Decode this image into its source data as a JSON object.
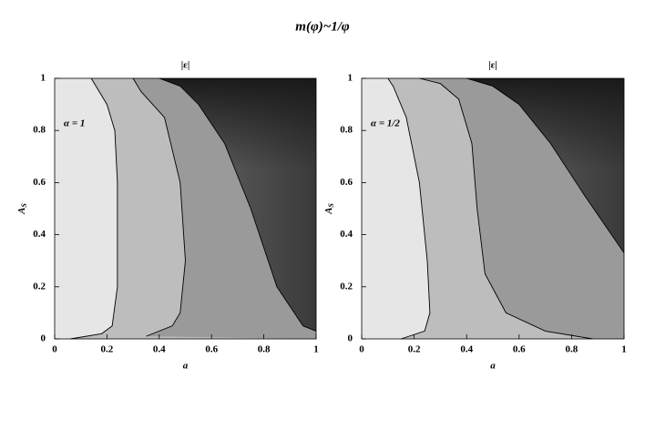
{
  "title": "m(φ)~1/φ",
  "chart_data": [
    {
      "type": "contour",
      "title": "|ε|",
      "xlabel": "a",
      "ylabel": "A",
      "ylabel_subscript": "S",
      "annotation": "α = 1",
      "xlim": [
        0,
        1
      ],
      "ylim": [
        0,
        1
      ],
      "xticks": [
        0,
        0.2,
        0.4,
        0.6,
        0.8,
        1
      ],
      "yticks": [
        0,
        0.2,
        0.4,
        0.6,
        0.8,
        1
      ],
      "series": [
        {
          "color": "#000000",
          "fill": "#e6e6e6",
          "x": [
            0.06,
            0.18,
            0.22,
            0.24,
            0.24,
            0.23,
            0.2,
            0.14
          ],
          "y": [
            0,
            0.02,
            0.05,
            0.2,
            0.6,
            0.8,
            0.9,
            1
          ]
        },
        {
          "color": "#000000",
          "fill": "#bdbdbd",
          "x": [
            0.35,
            0.45,
            0.48,
            0.5,
            0.48,
            0.42,
            0.33,
            0.3
          ],
          "y": [
            0.01,
            0.05,
            0.1,
            0.3,
            0.6,
            0.85,
            0.95,
            1
          ]
        },
        {
          "color": "#000000",
          "fill": "#9a9a9a",
          "x": [
            1,
            0.95,
            0.85,
            0.75,
            0.65,
            0.55,
            0.48,
            0.4
          ],
          "y": [
            0.03,
            0.05,
            0.2,
            0.5,
            0.75,
            0.9,
            0.97,
            1
          ]
        }
      ]
    },
    {
      "type": "contour",
      "title": "|ε|",
      "xlabel": "a",
      "ylabel": "A",
      "ylabel_subscript": "S",
      "annotation": "α = 1/2",
      "xlim": [
        0,
        1
      ],
      "ylim": [
        0,
        1
      ],
      "xticks": [
        0,
        0.2,
        0.4,
        0.6,
        0.8,
        1
      ],
      "yticks": [
        0,
        0.2,
        0.4,
        0.6,
        0.8,
        1
      ],
      "series": [
        {
          "color": "#000000",
          "fill": "#e6e6e6",
          "x": [
            0.15,
            0.24,
            0.26,
            0.25,
            0.22,
            0.17,
            0.12,
            0.1
          ],
          "y": [
            0,
            0.03,
            0.1,
            0.3,
            0.6,
            0.85,
            0.97,
            1
          ]
        },
        {
          "color": "#000000",
          "fill": "#bdbdbd",
          "x": [
            0.88,
            0.7,
            0.55,
            0.47,
            0.44,
            0.42,
            0.37,
            0.3,
            0.22
          ],
          "y": [
            0,
            0.03,
            0.1,
            0.25,
            0.5,
            0.75,
            0.92,
            0.98,
            1
          ]
        },
        {
          "color": "#000000",
          "fill": "#9a9a9a",
          "x": [
            1,
            0.85,
            0.72,
            0.6,
            0.5,
            0.4
          ],
          "y": [
            0.33,
            0.55,
            0.75,
            0.9,
            0.97,
            1
          ]
        }
      ]
    }
  ]
}
